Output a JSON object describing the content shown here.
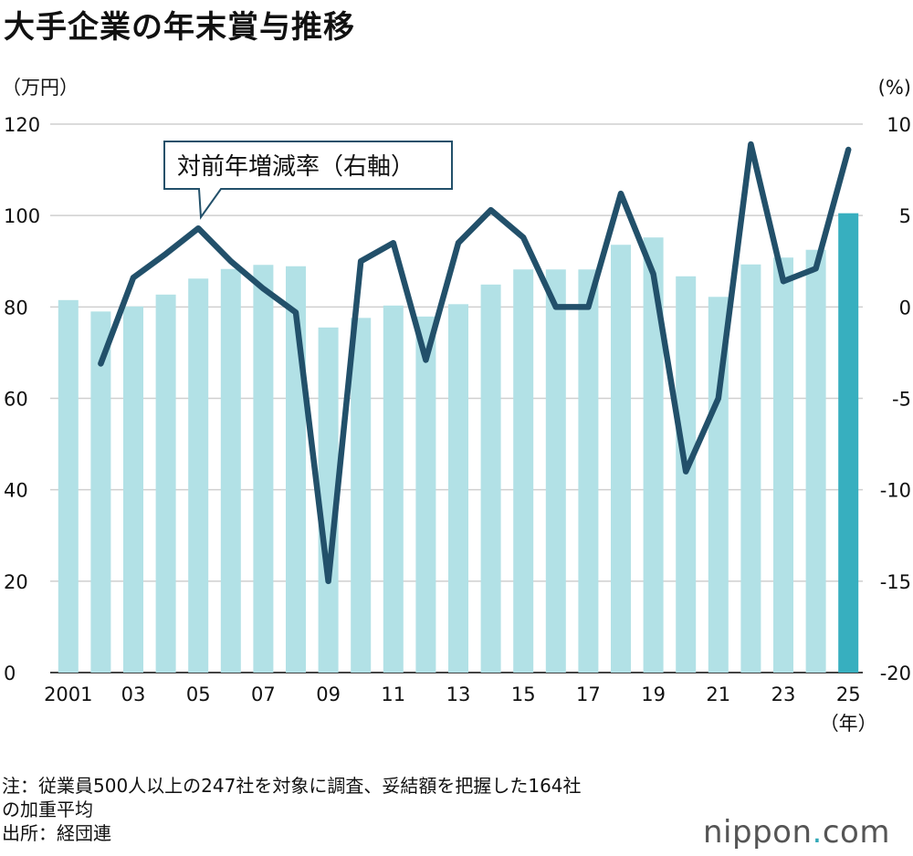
{
  "title": "大手企業の年末賞与推移",
  "chart_data": {
    "type": "bar+line",
    "title": "大手企業の年末賞与推移",
    "left_axis": {
      "unit": "（万円）",
      "ticks": [
        "0",
        "20",
        "40",
        "60",
        "80",
        "100",
        "120"
      ],
      "ylim": [
        0,
        120
      ]
    },
    "right_axis": {
      "unit": "(%)",
      "ticks": [
        "-20",
        "-15",
        "-10",
        "-5",
        "0",
        "5",
        "10"
      ],
      "ylim": [
        -20,
        10
      ]
    },
    "x_tick_labels": [
      "2001",
      "03",
      "05",
      "07",
      "09",
      "11",
      "13",
      "15",
      "17",
      "19",
      "21",
      "23",
      "25"
    ],
    "x_unit": "（年）",
    "years": [
      2001,
      2002,
      2003,
      2004,
      2005,
      2006,
      2007,
      2008,
      2009,
      2010,
      2011,
      2012,
      2013,
      2014,
      2015,
      2016,
      2017,
      2018,
      2019,
      2020,
      2021,
      2022,
      2023,
      2024,
      2025
    ],
    "bars": [
      81.5,
      79.0,
      80.1,
      82.7,
      86.2,
      88.3,
      89.2,
      88.9,
      75.5,
      77.6,
      80.3,
      77.9,
      80.6,
      84.9,
      88.2,
      88.2,
      88.2,
      93.6,
      95.2,
      86.7,
      82.2,
      89.3,
      90.8,
      92.5,
      100.5
    ],
    "line": [
      null,
      -3.1,
      1.6,
      2.9,
      4.3,
      2.5,
      1.0,
      -0.3,
      -15.0,
      2.5,
      3.5,
      -2.9,
      3.5,
      5.3,
      3.8,
      0.0,
      0.0,
      6.2,
      1.8,
      -9.0,
      -5.0,
      8.9,
      1.4,
      2.1,
      8.6
    ],
    "series": [
      {
        "name": "",
        "values_ref": "bars",
        "axis": "left",
        "color": "#b2e1e6",
        "highlight_color": "#37afbf"
      },
      {
        "name": "対前年増減率（右軸）",
        "values_ref": "line",
        "axis": "right",
        "color": "#22506a"
      }
    ],
    "grid": true
  },
  "note_lines": [
    "注：従業員500人以上の247社を対象に調査、妥結額を把握した164社",
    "の加重平均",
    "出所：経団連"
  ],
  "logo": {
    "main": "nippon",
    "dot": ".",
    "tail": "com"
  }
}
